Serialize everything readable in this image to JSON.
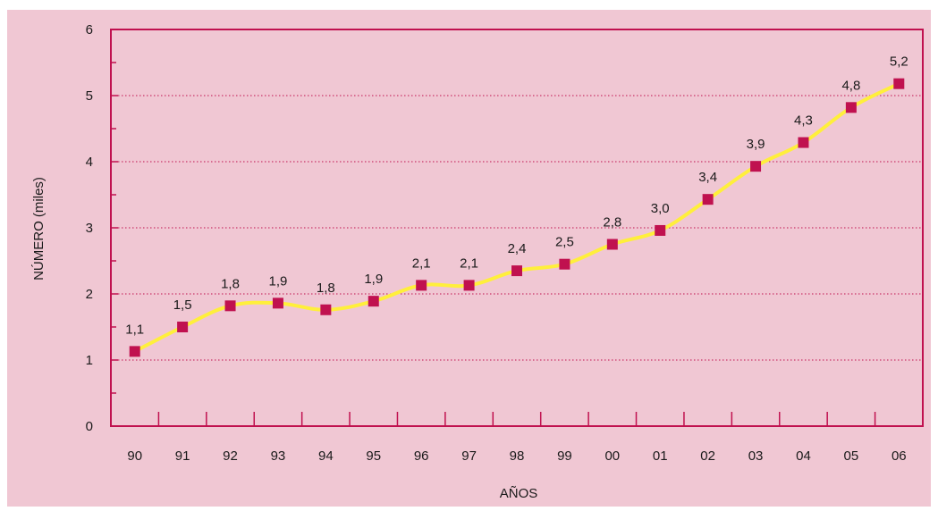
{
  "chart_data": {
    "type": "line",
    "xlabel": "AÑOS",
    "ylabel": "NÚMERO (miles)",
    "categories": [
      "90",
      "91",
      "92",
      "93",
      "94",
      "95",
      "96",
      "97",
      "98",
      "99",
      "00",
      "01",
      "02",
      "03",
      "04",
      "05",
      "06"
    ],
    "series": [
      {
        "values": [
          1.13,
          1.5,
          1.82,
          1.86,
          1.76,
          1.89,
          2.13,
          2.13,
          2.35,
          2.45,
          2.75,
          2.96,
          3.43,
          3.93,
          4.29,
          4.82,
          5.18
        ],
        "labels": [
          "1,1",
          "1,5",
          "1,8",
          "1,9",
          "1,8",
          "1,9",
          "2,1",
          "2,1",
          "2,4",
          "2,5",
          "2,8",
          "3,0",
          "3,4",
          "3,9",
          "4,3",
          "4,8",
          "5,2"
        ]
      }
    ],
    "ylim": [
      0,
      6
    ],
    "yticks": [
      "0",
      "1",
      "2",
      "3",
      "4",
      "5",
      "6"
    ],
    "grid": "horizontal dotted",
    "colors": {
      "background": "#f0c7d3",
      "axis": "#c0114f",
      "line": "#ffef3b",
      "marker": "#c0114f",
      "grid": "#c0114f"
    }
  }
}
